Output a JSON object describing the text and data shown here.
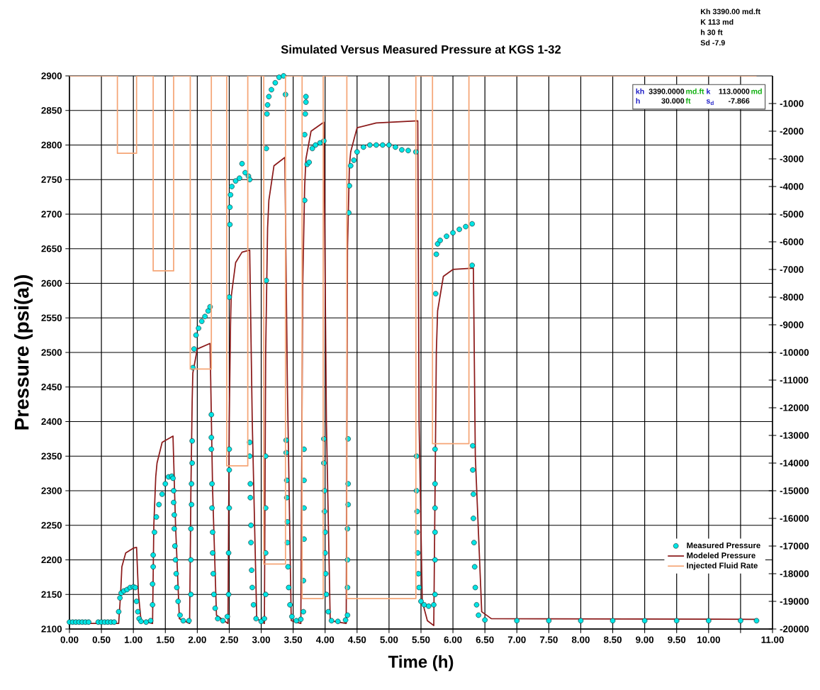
{
  "chart_data": {
    "type": "line",
    "title": "Simulated Versus Measured Pressure at KGS 1-32",
    "xlabel": "Time (h)",
    "ylabel": "Pressure (psi(a))",
    "xlim": [
      0,
      11
    ],
    "xticks": [
      {
        "value": 0,
        "label": "0.00"
      },
      {
        "value": 0.5,
        "label": "0.50"
      },
      {
        "value": 1,
        "label": "1.00"
      },
      {
        "value": 1.5,
        "label": "1.50"
      },
      {
        "value": 2,
        "label": "2.00"
      },
      {
        "value": 2.5,
        "label": "2.50"
      },
      {
        "value": 3,
        "label": "3.00"
      },
      {
        "value": 3.5,
        "label": "3.50"
      },
      {
        "value": 4,
        "label": "4.00"
      },
      {
        "value": 4.5,
        "label": "4.50"
      },
      {
        "value": 5,
        "label": "5.00"
      },
      {
        "value": 5.5,
        "label": "5.50"
      },
      {
        "value": 6,
        "label": "6.00"
      },
      {
        "value": 6.5,
        "label": "6.50"
      },
      {
        "value": 7,
        "label": "7.00"
      },
      {
        "value": 7.5,
        "label": "7.50"
      },
      {
        "value": 8,
        "label": "8.00"
      },
      {
        "value": 8.5,
        "label": "8.50"
      },
      {
        "value": 9,
        "label": "9.00"
      },
      {
        "value": 9.5,
        "label": "9.50"
      },
      {
        "value": 10,
        "label": "10.00"
      },
      {
        "value": 10.5,
        "label": null
      },
      {
        "value": 11,
        "label": "11.00"
      }
    ],
    "ylim": [
      2100,
      2900
    ],
    "yticks": [
      2100,
      2150,
      2200,
      2250,
      2300,
      2350,
      2400,
      2450,
      2500,
      2550,
      2600,
      2650,
      2700,
      2750,
      2800,
      2850,
      2900
    ],
    "y2lim": [
      -20000,
      0
    ],
    "y2ticks": [
      -20000,
      -19000,
      -18000,
      -17000,
      -16000,
      -15000,
      -14000,
      -13000,
      -12000,
      -11000,
      -10000,
      -9000,
      -8000,
      -7000,
      -6000,
      -5000,
      -4000,
      -3000,
      -2000,
      -1000
    ],
    "grid": true,
    "legend": "bottom right",
    "annotations": [
      "Kh 3390.00 md.ft",
      "K 113 md",
      "h 30 ft",
      "Sd -7.9",
      "kh",
      "3390.0000",
      "md.ft",
      "k",
      "113.0000",
      "md",
      "h",
      "30.000",
      "ft",
      "s$_{d}$",
      "-7.866"
    ],
    "series": [
      {
        "name": "Measured Pressure",
        "type": "scatter",
        "marker": "circle",
        "color": "#00e5e5",
        "x": [
          0,
          0.05,
          0.1,
          0.15,
          0.2,
          0.25,
          0.3,
          0.45,
          0.5,
          0.55,
          0.6,
          0.65,
          0.7,
          0.77,
          0.79,
          0.81,
          0.85,
          0.9,
          0.95,
          1.0,
          1.03,
          1.05,
          1.07,
          1.09,
          1.12,
          1.2,
          1.27,
          1.3,
          1.3,
          1.31,
          1.31,
          1.33,
          1.36,
          1.4,
          1.45,
          1.5,
          1.55,
          1.6,
          1.62,
          1.63,
          1.63,
          1.64,
          1.64,
          1.65,
          1.66,
          1.67,
          1.68,
          1.7,
          1.73,
          1.78,
          1.87,
          1.9,
          1.9,
          1.9,
          1.91,
          1.91,
          1.92,
          1.92,
          1.93,
          1.95,
          1.98,
          2.02,
          2.07,
          2.12,
          2.17,
          2.2,
          2.22,
          2.22,
          2.22,
          2.23,
          2.23,
          2.24,
          2.24,
          2.25,
          2.26,
          2.28,
          2.32,
          2.4,
          2.47,
          2.49,
          2.49,
          2.5,
          2.5,
          2.5,
          2.5,
          2.51,
          2.51,
          2.52,
          2.54,
          2.6,
          2.66,
          2.7,
          2.75,
          2.8,
          2.82,
          2.82,
          2.82,
          2.83,
          2.83,
          2.84,
          2.84,
          2.85,
          2.86,
          2.88,
          2.92,
          3.0,
          3.05,
          3.07,
          3.07,
          3.07,
          3.07,
          3.08,
          3.08,
          3.09,
          3.1,
          3.12,
          3.16,
          3.22,
          3.28,
          3.35,
          3.38,
          3.39,
          3.39,
          3.4,
          3.4,
          3.41,
          3.41,
          3.42,
          3.43,
          3.45,
          3.48,
          3.55,
          3.62,
          3.66,
          3.66,
          3.67,
          3.67,
          3.67,
          3.67,
          3.68,
          3.68,
          3.69,
          3.7,
          3.7,
          3.72,
          3.75,
          3.8,
          3.85,
          3.92,
          3.98,
          3.98,
          3.98,
          3.99,
          3.99,
          4.0,
          4.0,
          4.01,
          4.02,
          4.05,
          4.1,
          4.2,
          4.32,
          4.35,
          4.35,
          4.35,
          4.35,
          4.36,
          4.36,
          4.36,
          4.37,
          4.38,
          4.4,
          4.45,
          4.5,
          4.6,
          4.7,
          4.8,
          4.9,
          5.0,
          5.1,
          5.2,
          5.3,
          5.42,
          5.43,
          5.43,
          5.44,
          5.44,
          5.45,
          5.46,
          5.47,
          5.5,
          5.55,
          5.62,
          5.7,
          5.72,
          5.72,
          5.72,
          5.72,
          5.72,
          5.72,
          5.73,
          5.74,
          5.76,
          5.8,
          5.9,
          6.0,
          6.1,
          6.2,
          6.3,
          6.3,
          6.31,
          6.31,
          6.32,
          6.32,
          6.33,
          6.34,
          6.35,
          6.37,
          6.4,
          6.5,
          7.0,
          7.5,
          8.0,
          8.5,
          9.0,
          9.5,
          10.0,
          10.5,
          10.75
        ],
        "values": [
          2110,
          2110,
          2110,
          2110,
          2110,
          2110,
          2110,
          2110,
          2110,
          2110,
          2110,
          2110,
          2110,
          2125,
          2145,
          2152,
          2155,
          2157,
          2160,
          2161,
          2160,
          2140,
          2125,
          2115,
          2111,
          2110,
          2112,
          2135,
          2165,
          2190,
          2207,
          2240,
          2262,
          2280,
          2295,
          2310,
          2320,
          2321,
          2318,
          2300,
          2283,
          2265,
          2245,
          2220,
          2200,
          2180,
          2160,
          2140,
          2120,
          2112,
          2112,
          2150,
          2200,
          2245,
          2280,
          2310,
          2340,
          2372,
          2478,
          2505,
          2525,
          2535,
          2545,
          2552,
          2560,
          2566,
          2410,
          2377,
          2360,
          2310,
          2275,
          2240,
          2210,
          2180,
          2150,
          2130,
          2115,
          2112,
          2118,
          2150,
          2210,
          2275,
          2330,
          2360,
          2580,
          2685,
          2710,
          2728,
          2740,
          2748,
          2752,
          2773,
          2760,
          2755,
          2750,
          2370,
          2350,
          2310,
          2290,
          2250,
          2225,
          2185,
          2160,
          2135,
          2115,
          2111,
          2115,
          2150,
          2210,
          2275,
          2350,
          2604,
          2795,
          2845,
          2858,
          2870,
          2880,
          2890,
          2898,
          2900,
          2873,
          2373,
          2355,
          2315,
          2290,
          2255,
          2225,
          2190,
          2160,
          2135,
          2118,
          2112,
          2114,
          2125,
          2170,
          2230,
          2275,
          2315,
          2360,
          2720,
          2815,
          2845,
          2862,
          2870,
          2772,
          2775,
          2795,
          2800,
          2803,
          2806,
          2375,
          2340,
          2300,
          2270,
          2240,
          2210,
          2180,
          2150,
          2125,
          2112,
          2111,
          2113,
          2120,
          2160,
          2200,
          2245,
          2280,
          2310,
          2375,
          2702,
          2741,
          2770,
          2778,
          2790,
          2797,
          2800,
          2800,
          2800,
          2800,
          2797,
          2793,
          2792,
          2790,
          2350,
          2300,
          2270,
          2240,
          2210,
          2180,
          2160,
          2140,
          2135,
          2133,
          2135,
          2150,
          2200,
          2240,
          2275,
          2310,
          2360,
          2585,
          2642,
          2657,
          2662,
          2668,
          2673,
          2678,
          2682,
          2686,
          2626,
          2365,
          2330,
          2295,
          2260,
          2225,
          2190,
          2160,
          2135,
          2120,
          2113,
          2112,
          2112,
          2112,
          2112,
          2112,
          2112,
          2112,
          2112,
          2112
        ]
      },
      {
        "name": "Modeled Pressure",
        "marker": "none",
        "color": "#8b1a1a",
        "x": [
          0,
          0.77,
          0.8,
          0.82,
          0.88,
          1.0,
          1.05,
          1.08,
          1.12,
          1.3,
          1.32,
          1.35,
          1.37,
          1.45,
          1.6,
          1.62,
          1.66,
          1.72,
          1.88,
          1.9,
          1.92,
          1.93,
          2.0,
          2.2,
          2.24,
          2.3,
          2.48,
          2.5,
          2.52,
          2.53,
          2.6,
          2.7,
          2.82,
          2.86,
          2.93,
          3.05,
          3.07,
          3.1,
          3.12,
          3.2,
          3.37,
          3.41,
          3.47,
          3.62,
          3.65,
          3.68,
          3.7,
          3.78,
          3.98,
          4.02,
          4.08,
          4.33,
          4.35,
          4.38,
          4.4,
          4.5,
          4.8,
          5.45,
          5.47,
          5.52,
          5.6,
          5.7,
          5.72,
          5.74,
          5.76,
          5.85,
          6.0,
          6.32,
          6.35,
          6.45,
          6.6,
          10.75
        ],
        "values": [
          2108,
          2108,
          2150,
          2190,
          2210,
          2217,
          2218,
          2150,
          2112,
          2108,
          2250,
          2320,
          2340,
          2370,
          2378,
          2379,
          2250,
          2115,
          2108,
          2300,
          2430,
          2470,
          2505,
          2513,
          2300,
          2120,
          2108,
          2400,
          2540,
          2580,
          2630,
          2645,
          2648,
          2400,
          2115,
          2108,
          2500,
          2680,
          2720,
          2770,
          2782,
          2450,
          2112,
          2108,
          2600,
          2740,
          2780,
          2820,
          2833,
          2400,
          2112,
          2108,
          2650,
          2770,
          2790,
          2825,
          2832,
          2835,
          2400,
          2140,
          2112,
          2105,
          2300,
          2500,
          2560,
          2610,
          2620,
          2622,
          2350,
          2125,
          2115,
          2114
        ]
      },
      {
        "name": "Injected Fluid Rate",
        "type": "step",
        "marker": "none",
        "axis": "y2",
        "color": "#f5a576",
        "x": [
          0,
          0.75,
          1.05,
          1.31,
          1.63,
          1.89,
          2.22,
          2.46,
          2.79,
          3.04,
          3.38,
          3.64,
          3.97,
          4.34,
          5.42,
          5.68,
          6.25,
          10.75
        ],
        "values": [
          0,
          -2800,
          0,
          -7050,
          0,
          -10600,
          0,
          -14100,
          0,
          -17650,
          0,
          -18900,
          0,
          -18900,
          0,
          -13300,
          0,
          0
        ]
      }
    ]
  }
}
